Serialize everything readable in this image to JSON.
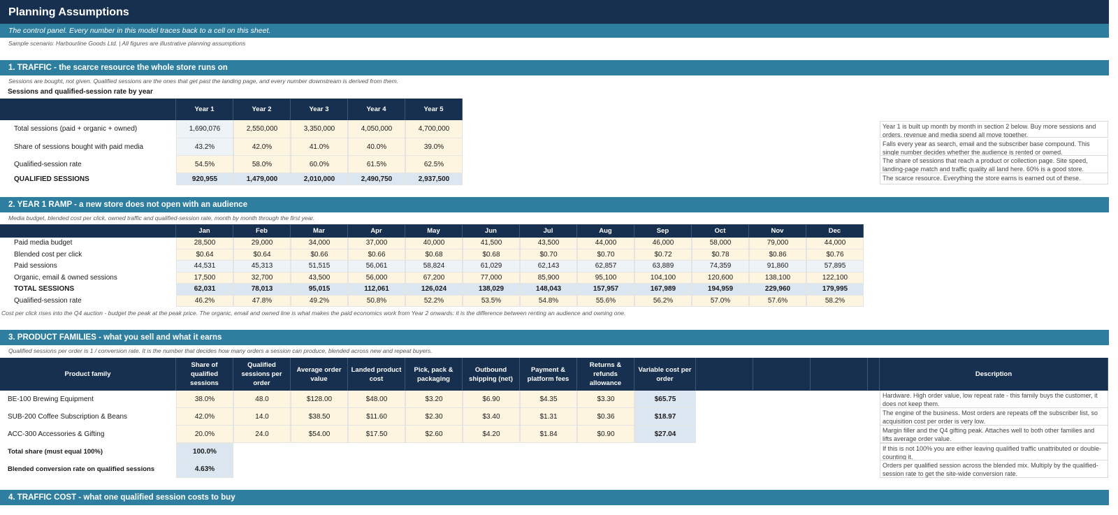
{
  "title": "Planning Assumptions",
  "subtitle": "The control panel. Every number in this model traces back to a cell on this sheet.",
  "scenario_note": "Sample scenario: Harbourline Goods Ltd.   |   All figures are illustrative planning assumptions",
  "s1": {
    "title": "1. TRAFFIC - the scarce resource the whole store runs on",
    "note": "Sessions are bought, not given. Qualified sessions are the ones that get past the landing page, and every number downstream is derived from them.",
    "table_title": "Sessions and qualified-session rate by year",
    "columns": [
      "Year 1",
      "Year 2",
      "Year 3",
      "Year 4",
      "Year 5"
    ],
    "rows": [
      {
        "label": "Total sessions (paid + organic + owned)",
        "values": [
          "1,690,076",
          "2,550,000",
          "3,350,000",
          "4,050,000",
          "4,700,000"
        ],
        "desc": "Year 1 is built up month by month in section 2 below. Buy more sessions and orders, revenue and media spend all move together."
      },
      {
        "label": "Share of sessions bought with paid media",
        "values": [
          "43.2%",
          "42.0%",
          "41.0%",
          "40.0%",
          "39.0%"
        ],
        "desc": "Falls every year as search, email and the subscriber base compound. This single number decides whether the audience is rented or owned."
      },
      {
        "label": "Qualified-session rate",
        "values": [
          "54.5%",
          "58.0%",
          "60.0%",
          "61.5%",
          "62.5%"
        ],
        "desc": "The share of sessions that reach a product or collection page. Site speed, landing-page match and traffic quality all land here. 60% is a good store."
      },
      {
        "label": "QUALIFIED SESSIONS",
        "values": [
          "920,955",
          "1,479,000",
          "2,010,000",
          "2,490,750",
          "2,937,500"
        ],
        "desc": "The scarce resource. Everything the store earns is earned out of these."
      }
    ]
  },
  "s2": {
    "title": "2. YEAR 1 RAMP - a new store does not open with an audience",
    "note": "Media budget, blended cost per click, owned traffic and qualified-session rate, month by month through the first year.",
    "columns": [
      "Jan",
      "Feb",
      "Mar",
      "Apr",
      "May",
      "Jun",
      "Jul",
      "Aug",
      "Sep",
      "Oct",
      "Nov",
      "Dec"
    ],
    "rows": [
      {
        "label": "Paid media budget",
        "values": [
          "28,500",
          "29,000",
          "34,000",
          "37,000",
          "40,000",
          "41,500",
          "43,500",
          "44,000",
          "46,000",
          "58,000",
          "79,000",
          "44,000"
        ]
      },
      {
        "label": "Blended cost per click",
        "values": [
          "$0.64",
          "$0.64",
          "$0.66",
          "$0.66",
          "$0.68",
          "$0.68",
          "$0.70",
          "$0.70",
          "$0.72",
          "$0.78",
          "$0.86",
          "$0.76"
        ]
      },
      {
        "label": "Paid sessions",
        "values": [
          "44,531",
          "45,313",
          "51,515",
          "56,061",
          "58,824",
          "61,029",
          "62,143",
          "62,857",
          "63,889",
          "74,359",
          "91,860",
          "57,895"
        ]
      },
      {
        "label": "Organic, email & owned sessions",
        "values": [
          "17,500",
          "32,700",
          "43,500",
          "56,000",
          "67,200",
          "77,000",
          "85,900",
          "95,100",
          "104,100",
          "120,600",
          "138,100",
          "122,100"
        ]
      },
      {
        "label": "TOTAL SESSIONS",
        "values": [
          "62,031",
          "78,013",
          "95,015",
          "112,061",
          "126,024",
          "138,029",
          "148,043",
          "157,957",
          "167,989",
          "194,959",
          "229,960",
          "179,995"
        ]
      },
      {
        "label": "Qualified-session rate",
        "values": [
          "46.2%",
          "47.8%",
          "49.2%",
          "50.8%",
          "52.2%",
          "53.5%",
          "54.8%",
          "55.6%",
          "56.2%",
          "57.0%",
          "57.6%",
          "58.2%"
        ]
      }
    ],
    "footnote": "Cost per click rises into the Q4 auction - budget the peak at the peak price. The organic, email and owned line is what makes the paid economics work from Year 2 onwards: it is the difference between renting an audience and owning one."
  },
  "s3": {
    "title": "3. PRODUCT FAMILIES - what you sell and what it earns",
    "note": "Qualified sessions per order is 1 / conversion rate. It is the number that decides how many orders a session can produce, blended across new and repeat buyers.",
    "columns": [
      "Product family",
      "Share of qualified sessions",
      "Qualified sessions per order",
      "Average order value",
      "Landed product cost",
      "Pick, pack & packaging",
      "Outbound shipping (net)",
      "Payment & platform fees",
      "Returns & refunds allowance",
      "Variable cost per order",
      "Description"
    ],
    "rows": [
      {
        "label": "BE-100  Brewing Equipment",
        "values": [
          "38.0%",
          "48.0",
          "$128.00",
          "$48.00",
          "$3.20",
          "$6.90",
          "$4.35",
          "$3.30",
          "$65.75"
        ],
        "desc": "Hardware. High order value, low repeat rate - this family buys the customer, it does not keep them."
      },
      {
        "label": "SUB-200  Coffee Subscription & Beans",
        "values": [
          "42.0%",
          "14.0",
          "$38.50",
          "$11.60",
          "$2.30",
          "$3.40",
          "$1.31",
          "$0.36",
          "$18.97"
        ],
        "desc": "The engine of the business. Most orders are repeats off the subscriber list, so acquisition cost per order is very low."
      },
      {
        "label": "ACC-300  Accessories & Gifting",
        "values": [
          "20.0%",
          "24.0",
          "$54.00",
          "$17.50",
          "$2.60",
          "$4.20",
          "$1.84",
          "$0.90",
          "$27.04"
        ],
        "desc": "Margin filler and the Q4 gifting peak. Attaches well to both other families and lifts average order value."
      }
    ],
    "total_share_label": "Total share (must equal 100%)",
    "total_share_value": "100.0%",
    "total_share_desc": "If this is not 100% you are either leaving qualified traffic unattributed or double-counting it.",
    "blended_label": "Blended conversion rate on qualified sessions",
    "blended_value": "4.63%",
    "blended_desc": "Orders per qualified session across the blended mix. Multiply by the qualified-session rate to get the site-wide conversion rate."
  },
  "s4": {
    "title": "4. TRAFFIC COST - what one qualified session costs to buy"
  },
  "colors": {
    "navy": "#17304f",
    "teal": "#2e7f9f",
    "input": "#fdf5e0",
    "calc": "#dbe6f0"
  }
}
